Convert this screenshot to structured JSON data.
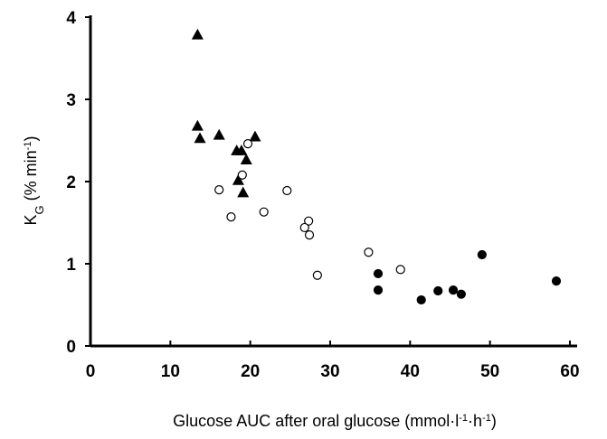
{
  "chart_data": {
    "type": "scatter",
    "xlabel": [
      {
        "text": "Glucose AUC after oral glucose (mmol·l"
      },
      {
        "text": "-1",
        "sup": true
      },
      {
        "text": "·h"
      },
      {
        "text": "-1",
        "sup": true
      },
      {
        "text": ")"
      }
    ],
    "ylabel": [
      {
        "text": "K"
      },
      {
        "text": "G",
        "sub": true
      },
      {
        "text": " (% min"
      },
      {
        "text": "-1",
        "sup": true
      },
      {
        "text": ")"
      }
    ],
    "xlim": [
      0,
      60
    ],
    "xticks": [
      0,
      10,
      20,
      30,
      40,
      50,
      60
    ],
    "ylim": [
      0,
      4
    ],
    "yticks": [
      0,
      1,
      2,
      3,
      4
    ],
    "series": [
      {
        "marker": "triangle",
        "filled": true,
        "color": "#000000",
        "x": [
          13.4,
          13.4,
          13.7,
          16.1,
          18.3,
          18.9,
          20.6,
          19.5,
          18.5,
          19.1
        ],
        "values": [
          3.78,
          2.67,
          2.52,
          2.56,
          2.37,
          2.37,
          2.54,
          2.26,
          2.01,
          1.86
        ]
      },
      {
        "marker": "circle",
        "filled": false,
        "color": "#000000",
        "x": [
          19.7,
          19.0,
          16.1,
          17.6,
          21.7,
          24.6,
          27.3,
          26.8,
          27.4,
          28.4,
          34.8,
          38.8
        ],
        "values": [
          2.46,
          2.08,
          1.9,
          1.57,
          1.63,
          1.89,
          1.52,
          1.44,
          1.35,
          0.86,
          1.14,
          0.93
        ]
      },
      {
        "marker": "circle",
        "filled": true,
        "color": "#000000",
        "x": [
          36.0,
          36.0,
          41.4,
          43.5,
          45.4,
          46.4,
          49.0,
          58.3
        ],
        "values": [
          0.88,
          0.68,
          0.56,
          0.67,
          0.68,
          0.63,
          1.11,
          0.79
        ]
      }
    ]
  }
}
